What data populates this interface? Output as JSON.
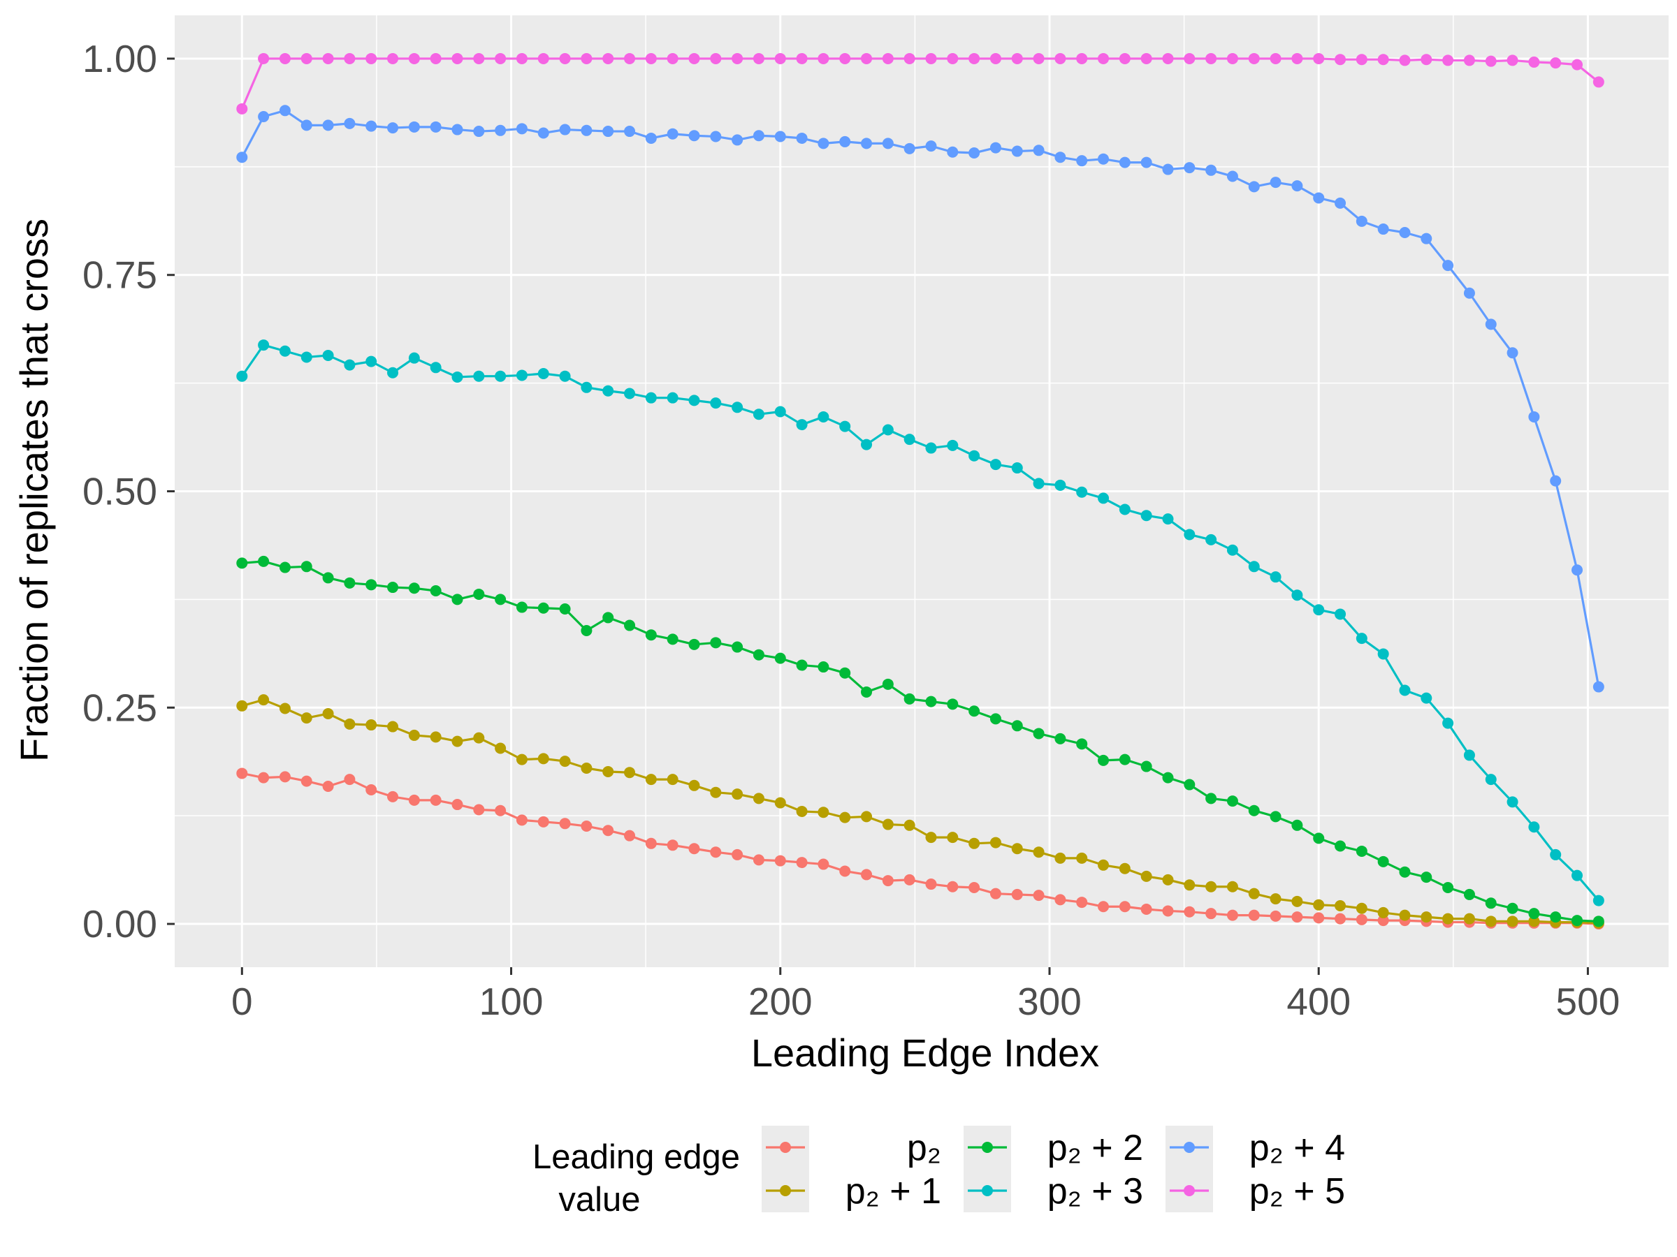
{
  "chart_data": {
    "type": "line",
    "xlabel": "Leading Edge Index",
    "ylabel": "Fraction of replicates that cross",
    "xlim": [
      -25,
      530
    ],
    "ylim": [
      -0.05,
      1.05
    ],
    "x_ticks": [
      0,
      100,
      200,
      300,
      400,
      500
    ],
    "x_tick_labels": [
      "0",
      "100",
      "200",
      "300",
      "400",
      "500"
    ],
    "y_ticks": [
      0,
      0.25,
      0.5,
      0.75,
      1.0
    ],
    "y_tick_labels": [
      "0.00",
      "0.25",
      "0.50",
      "0.75",
      "1.00"
    ],
    "grid": true,
    "markers": true,
    "legend": {
      "title_line1": "Leading edge",
      "title_line2": "value",
      "position": "bottom"
    },
    "x": [
      0,
      8,
      16,
      24,
      32,
      40,
      48,
      56,
      64,
      72,
      80,
      88,
      96,
      104,
      112,
      120,
      128,
      136,
      144,
      152,
      160,
      168,
      176,
      184,
      192,
      200,
      208,
      216,
      224,
      232,
      240,
      248,
      256,
      264,
      272,
      280,
      288,
      296,
      304,
      312,
      320,
      328,
      336,
      344,
      352,
      360,
      368,
      376,
      384,
      392,
      400,
      408,
      416,
      424,
      432,
      440,
      448,
      456,
      464,
      472,
      480,
      488,
      496,
      504
    ],
    "series": [
      {
        "name": "p₂",
        "color": "#F8766D",
        "values": [
          0.174,
          0.169,
          0.17,
          0.165,
          0.159,
          0.167,
          0.155,
          0.147,
          0.143,
          0.143,
          0.138,
          0.132,
          0.131,
          0.12,
          0.118,
          0.116,
          0.113,
          0.108,
          0.102,
          0.093,
          0.091,
          0.087,
          0.083,
          0.08,
          0.074,
          0.073,
          0.071,
          0.069,
          0.061,
          0.057,
          0.05,
          0.051,
          0.046,
          0.043,
          0.042,
          0.035,
          0.034,
          0.033,
          0.028,
          0.025,
          0.02,
          0.02,
          0.017,
          0.015,
          0.014,
          0.012,
          0.01,
          0.01,
          0.009,
          0.008,
          0.007,
          0.006,
          0.005,
          0.004,
          0.004,
          0.003,
          0.002,
          0.002,
          0.001,
          0.001,
          0.001,
          0.001,
          0.001,
          0.0
        ]
      },
      {
        "name": "p₂ + 1",
        "color": "#B79F00",
        "values": [
          0.252,
          0.259,
          0.249,
          0.238,
          0.243,
          0.231,
          0.23,
          0.228,
          0.218,
          0.216,
          0.211,
          0.215,
          0.203,
          0.19,
          0.191,
          0.188,
          0.18,
          0.176,
          0.175,
          0.167,
          0.167,
          0.16,
          0.152,
          0.15,
          0.145,
          0.14,
          0.13,
          0.129,
          0.123,
          0.124,
          0.115,
          0.114,
          0.1,
          0.1,
          0.093,
          0.094,
          0.087,
          0.083,
          0.076,
          0.076,
          0.068,
          0.064,
          0.055,
          0.051,
          0.045,
          0.043,
          0.043,
          0.035,
          0.029,
          0.026,
          0.022,
          0.021,
          0.018,
          0.013,
          0.01,
          0.008,
          0.006,
          0.006,
          0.003,
          0.003,
          0.003,
          0.002,
          0.002,
          0.001
        ]
      },
      {
        "name": "p₂ + 2",
        "color": "#00BA38",
        "values": [
          0.417,
          0.419,
          0.412,
          0.413,
          0.4,
          0.394,
          0.392,
          0.389,
          0.388,
          0.385,
          0.375,
          0.381,
          0.375,
          0.366,
          0.365,
          0.364,
          0.339,
          0.354,
          0.345,
          0.334,
          0.329,
          0.323,
          0.325,
          0.32,
          0.311,
          0.307,
          0.299,
          0.297,
          0.29,
          0.268,
          0.277,
          0.26,
          0.257,
          0.254,
          0.246,
          0.237,
          0.229,
          0.22,
          0.214,
          0.208,
          0.189,
          0.19,
          0.182,
          0.169,
          0.161,
          0.145,
          0.142,
          0.131,
          0.124,
          0.114,
          0.099,
          0.09,
          0.084,
          0.072,
          0.06,
          0.054,
          0.042,
          0.034,
          0.024,
          0.018,
          0.012,
          0.008,
          0.004,
          0.003
        ]
      },
      {
        "name": "p₂ + 3",
        "color": "#00BFC4",
        "values": [
          0.633,
          0.669,
          0.662,
          0.655,
          0.657,
          0.646,
          0.65,
          0.637,
          0.654,
          0.643,
          0.632,
          0.633,
          0.633,
          0.634,
          0.636,
          0.633,
          0.62,
          0.616,
          0.613,
          0.608,
          0.608,
          0.605,
          0.602,
          0.597,
          0.589,
          0.592,
          0.577,
          0.586,
          0.575,
          0.554,
          0.571,
          0.56,
          0.55,
          0.553,
          0.541,
          0.531,
          0.527,
          0.509,
          0.507,
          0.499,
          0.492,
          0.479,
          0.472,
          0.468,
          0.45,
          0.444,
          0.432,
          0.413,
          0.401,
          0.38,
          0.363,
          0.358,
          0.33,
          0.312,
          0.27,
          0.261,
          0.232,
          0.195,
          0.167,
          0.141,
          0.112,
          0.08,
          0.056,
          0.027
        ]
      },
      {
        "name": "p₂ + 4",
        "color": "#619CFF",
        "values": [
          0.886,
          0.933,
          0.94,
          0.923,
          0.923,
          0.925,
          0.922,
          0.92,
          0.921,
          0.921,
          0.918,
          0.916,
          0.917,
          0.919,
          0.914,
          0.918,
          0.917,
          0.916,
          0.916,
          0.908,
          0.913,
          0.911,
          0.91,
          0.906,
          0.911,
          0.91,
          0.908,
          0.902,
          0.904,
          0.902,
          0.902,
          0.896,
          0.899,
          0.892,
          0.891,
          0.897,
          0.893,
          0.894,
          0.886,
          0.882,
          0.884,
          0.88,
          0.88,
          0.872,
          0.874,
          0.871,
          0.864,
          0.852,
          0.857,
          0.853,
          0.839,
          0.833,
          0.812,
          0.803,
          0.799,
          0.792,
          0.761,
          0.729,
          0.693,
          0.66,
          0.586,
          0.512,
          0.409,
          0.274
        ]
      },
      {
        "name": "p₂ + 5",
        "color": "#F564E3",
        "values": [
          0.942,
          1.0,
          1.0,
          1.0,
          1.0,
          1.0,
          1.0,
          1.0,
          1.0,
          1.0,
          1.0,
          1.0,
          1.0,
          1.0,
          1.0,
          1.0,
          1.0,
          1.0,
          1.0,
          1.0,
          1.0,
          1.0,
          1.0,
          1.0,
          1.0,
          1.0,
          1.0,
          1.0,
          1.0,
          1.0,
          1.0,
          1.0,
          1.0,
          1.0,
          1.0,
          1.0,
          1.0,
          1.0,
          1.0,
          1.0,
          1.0,
          1.0,
          1.0,
          1.0,
          1.0,
          1.0,
          1.0,
          1.0,
          1.0,
          1.0,
          1.0,
          0.999,
          0.999,
          0.999,
          0.998,
          0.999,
          0.998,
          0.998,
          0.997,
          0.998,
          0.996,
          0.995,
          0.993,
          0.973
        ]
      }
    ],
    "panel_background": "#EBEBEB",
    "grid_color": "#FFFFFF"
  }
}
